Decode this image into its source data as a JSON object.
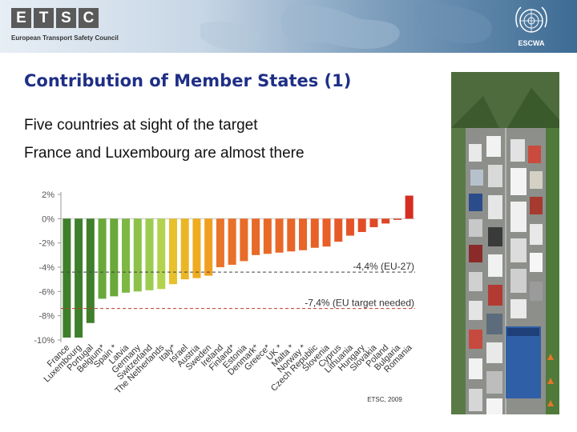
{
  "header": {
    "logo_letters": [
      "E",
      "T",
      "S",
      "C"
    ],
    "logo_subtitle": "European Transport Safety Council",
    "org_label": "ESCWA",
    "emblem_icon": "un-emblem-icon"
  },
  "slide": {
    "title": "Contribution of Member States (1)",
    "lines": [
      "Five countries at sight of the target",
      "France and Luxembourg are almost there"
    ]
  },
  "photo": {
    "subject": "traffic-jam-photo"
  },
  "colors": {
    "title": "#1f2f86",
    "dark_green": "#3f7f2c",
    "orange": "#e8742a",
    "red": "#d62d22"
  },
  "chart_data": {
    "type": "bar",
    "title": "",
    "categories": [
      "France",
      "Luxembourg",
      "Portugal",
      "Belgium*",
      "Spain *",
      "Latvia",
      "Germany",
      "Switzerland",
      "The Netherlands",
      "Italy*",
      "Israel",
      "Austria",
      "Sweden",
      "Ireland",
      "Finland*",
      "Estonia",
      "Denmark*",
      "Greece*",
      "UK *",
      "Malta *",
      "Norway *",
      "Czech Republic",
      "Slovenia",
      "Cyprus",
      "Lithuania",
      "Hungary",
      "Slovakia",
      "Poland",
      "Bulgaria",
      "Romania"
    ],
    "values": [
      -9.8,
      -9.8,
      -8.6,
      -6.6,
      -6.4,
      -6.1,
      -6.0,
      -5.9,
      -5.8,
      -5.4,
      -5.0,
      -4.9,
      -4.7,
      -4.0,
      -3.8,
      -3.5,
      -3.0,
      -2.9,
      -2.8,
      -2.7,
      -2.6,
      -2.4,
      -2.3,
      -1.9,
      -1.4,
      -1.1,
      -0.7,
      -0.4,
      -0.1,
      1.9
    ],
    "bar_colors": [
      "#3f7f2c",
      "#3f7f2c",
      "#3f7f2c",
      "#6aa83a",
      "#6aa83a",
      "#7db843",
      "#8cc24a",
      "#9ccb52",
      "#b3d34f",
      "#e8c02c",
      "#ebb626",
      "#eeac23",
      "#f0a021",
      "#e8742a",
      "#e87029",
      "#e86c28",
      "#e86a28",
      "#e86a28",
      "#e86828",
      "#e86628",
      "#e86428",
      "#e86228",
      "#e86028",
      "#e65a28",
      "#e45428",
      "#e24e27",
      "#e04a26",
      "#de4626",
      "#dc4025",
      "#d62d22"
    ],
    "yticks": [
      2,
      0,
      -2,
      -4,
      -6,
      -8,
      -10
    ],
    "ytick_labels": [
      "2%",
      "0%",
      "-2%",
      "-4%",
      "-6%",
      "-8%",
      "-10%"
    ],
    "ylim": [
      -10,
      2
    ],
    "reference_lines": [
      {
        "value": -4.4,
        "label": "-4,4% (EU-27)"
      },
      {
        "value": -7.4,
        "label": "-7,4% (EU target needed)"
      }
    ],
    "source_note": "ETSC, 2009",
    "grid": false
  }
}
